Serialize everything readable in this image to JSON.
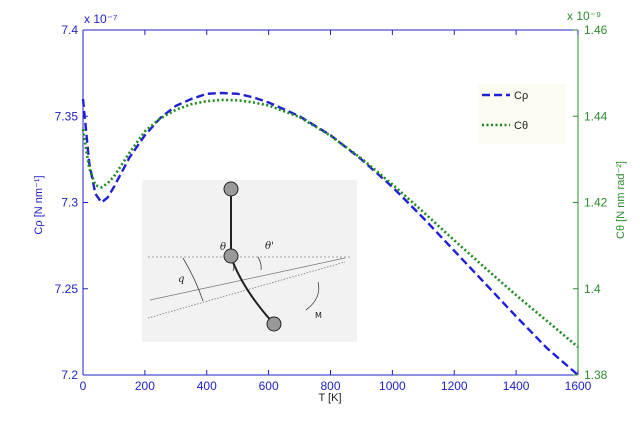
{
  "chart_data": {
    "type": "line",
    "xlabel": "T [K]",
    "ylabel_left": "Cρ [N nm⁻¹]",
    "ylabel_right": "Cθ [N nm rad⁻²]",
    "left_axis_exponent": "x 10⁻⁷",
    "right_axis_exponent": "x 10⁻⁹",
    "xlim": [
      0,
      1600
    ],
    "ylim_left": [
      7.2,
      7.4
    ],
    "ylim_right": [
      1.38,
      1.46
    ],
    "x_ticks": [
      "0",
      "200",
      "400",
      "600",
      "800",
      "1000",
      "1200",
      "1400",
      "1600"
    ],
    "y_ticks_left": [
      "7.2",
      "7.25",
      "7.3",
      "7.35",
      "7.4"
    ],
    "y_ticks_right": [
      "1.38",
      "1.4",
      "1.42",
      "1.44",
      "1.46"
    ],
    "legend_position": "top-right",
    "grid": false,
    "series": [
      {
        "name": "Cρ",
        "axis": "left",
        "color": "#1f1fd6",
        "style": "dashed",
        "x": [
          0,
          20,
          40,
          60,
          80,
          100,
          150,
          200,
          250,
          300,
          350,
          400,
          450,
          500,
          550,
          600,
          700,
          800,
          900,
          1000,
          1100,
          1200,
          1300,
          1400,
          1500,
          1600
        ],
        "y": [
          7.36,
          7.323,
          7.305,
          7.3,
          7.303,
          7.309,
          7.326,
          7.339,
          7.349,
          7.356,
          7.36,
          7.363,
          7.3635,
          7.363,
          7.361,
          7.358,
          7.35,
          7.339,
          7.325,
          7.309,
          7.291,
          7.272,
          7.253,
          7.234,
          7.2155,
          7.2
        ]
      },
      {
        "name": "Cθ",
        "axis": "right",
        "color": "#1c8a1c",
        "style": "dotted",
        "x": [
          0,
          20,
          40,
          60,
          80,
          100,
          150,
          200,
          250,
          300,
          350,
          400,
          450,
          500,
          550,
          600,
          700,
          800,
          900,
          1000,
          1100,
          1200,
          1300,
          1400,
          1500,
          1600
        ],
        "y": [
          1.437,
          1.428,
          1.424,
          1.4235,
          1.4245,
          1.426,
          1.4315,
          1.4365,
          1.4395,
          1.4415,
          1.4428,
          1.4435,
          1.4438,
          1.4437,
          1.4432,
          1.4425,
          1.4398,
          1.4355,
          1.4302,
          1.4242,
          1.4178,
          1.4112,
          1.4048,
          1.3985,
          1.3925,
          1.3865
        ]
      }
    ],
    "inset": {
      "labels": [
        "θ",
        "θ'",
        "q",
        "M"
      ]
    }
  }
}
